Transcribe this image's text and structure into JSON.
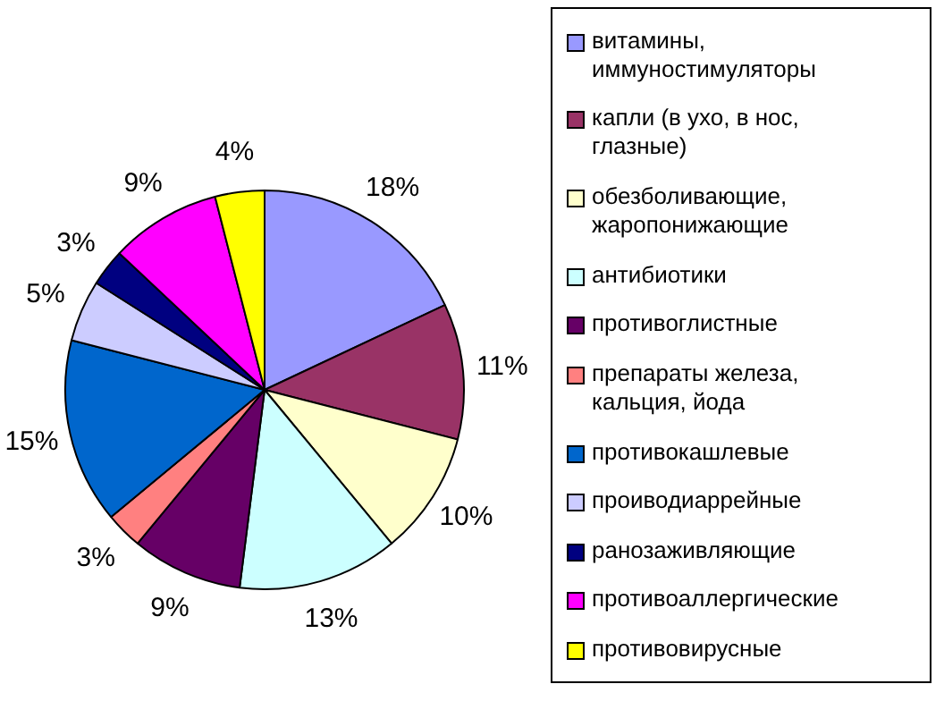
{
  "chart_data": {
    "type": "pie",
    "categories": [
      "витамины, иммуностимуляторы",
      "капли (в ухо, в нос, глазные)",
      "обезболивающие, жаропонижающие",
      "антибиотики",
      "противоглистные",
      "препараты железа, кальция, йода",
      "противокашлевые",
      "проиводиаррейные",
      "ранозаживляющие",
      "противоаллергические",
      "противовирусные"
    ],
    "values": [
      18,
      11,
      10,
      13,
      9,
      3,
      15,
      5,
      3,
      9,
      4
    ],
    "value_labels": [
      "18%",
      "11%",
      "10%",
      "13%",
      "9%",
      "3%",
      "15%",
      "5%",
      "3%",
      "9%",
      "4%"
    ],
    "colors": [
      "#9999ff",
      "#993366",
      "#ffffcc",
      "#ccffff",
      "#660066",
      "#ff8080",
      "#0066cc",
      "#ccccff",
      "#000080",
      "#ff00ff",
      "#ffff00"
    ],
    "legend": "right"
  }
}
